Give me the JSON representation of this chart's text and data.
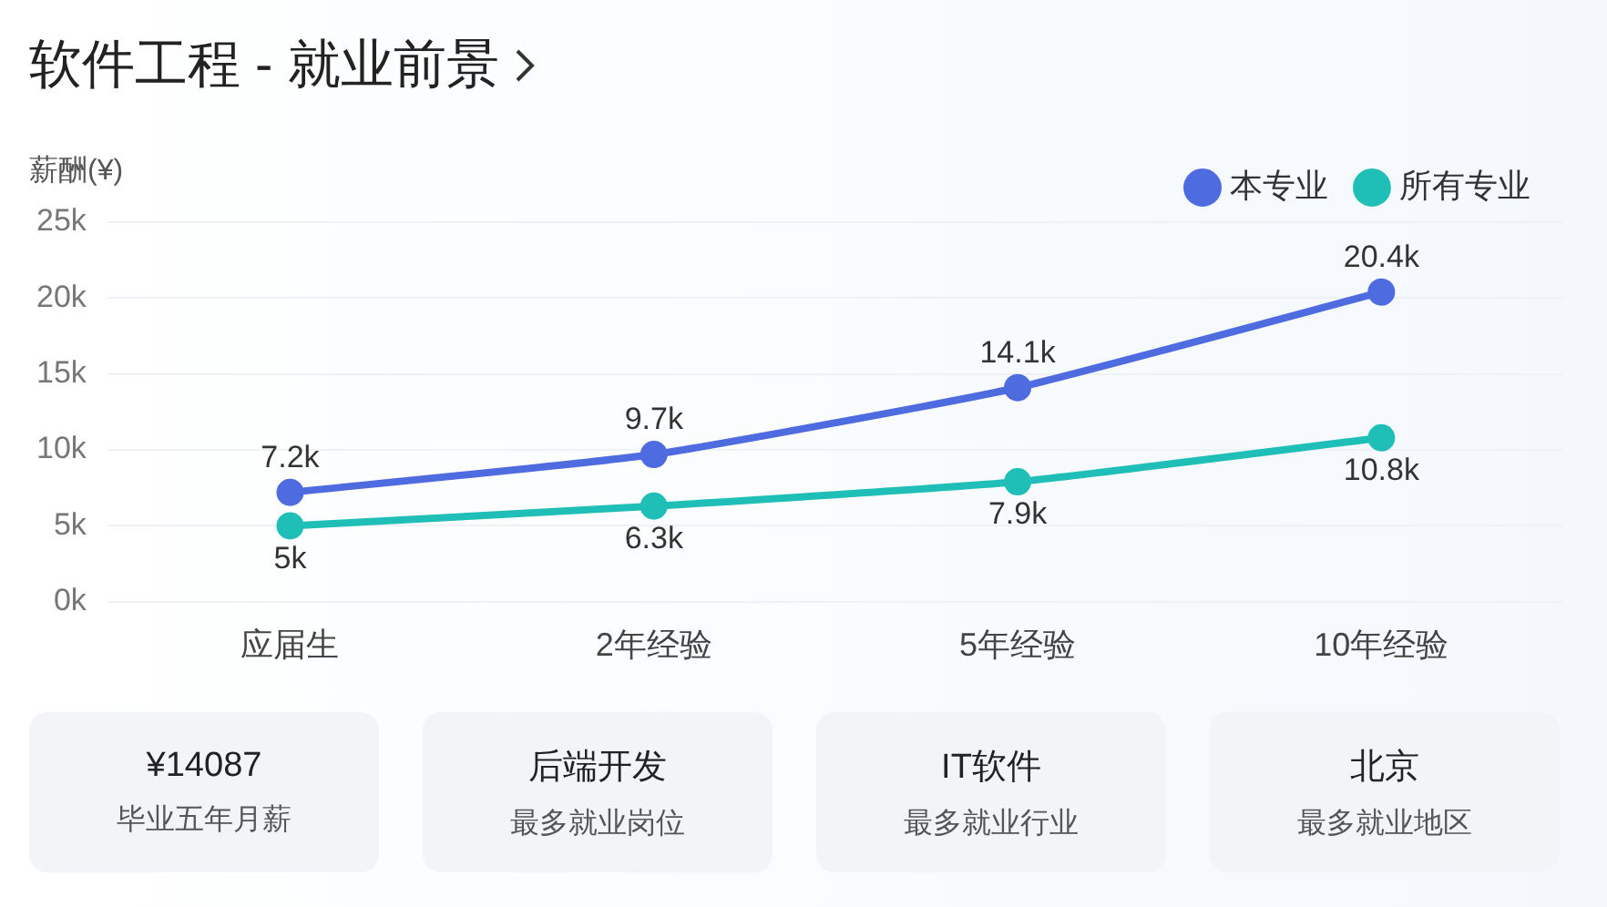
{
  "chart_data": {
    "type": "line",
    "title": "软件工程 - 就业前景",
    "ylabel": "薪酬(¥)",
    "categories": [
      "应届生",
      "2年经验",
      "5年经验",
      "10年经验"
    ],
    "series": [
      {
        "name": "本专业",
        "color": "#4f6be0",
        "values": [
          7.2,
          9.7,
          14.1,
          20.4
        ],
        "value_labels": [
          "7.2k",
          "9.7k",
          "14.1k",
          "20.4k"
        ]
      },
      {
        "name": "所有专业",
        "color": "#1fbfb8",
        "values": [
          5,
          6.3,
          7.9,
          10.8
        ],
        "value_labels": [
          "5k",
          "6.3k",
          "7.9k",
          "10.8k"
        ]
      }
    ],
    "ylim": [
      0,
      25
    ],
    "yticks": [
      {
        "value": 0,
        "label": "0k"
      },
      {
        "value": 5,
        "label": "5k"
      },
      {
        "value": 10,
        "label": "10k"
      },
      {
        "value": 15,
        "label": "15k"
      },
      {
        "value": 20,
        "label": "20k"
      },
      {
        "value": 25,
        "label": "25k"
      }
    ],
    "grid": "y",
    "legend": "top right",
    "marker": "circle",
    "line_style": "solid",
    "annotations": [
      "¥14087",
      "毕业五年月薪",
      "后端开发",
      "最多就业岗位",
      "IT软件",
      "最多就业行业",
      "北京",
      "最多就业地区"
    ]
  }
}
